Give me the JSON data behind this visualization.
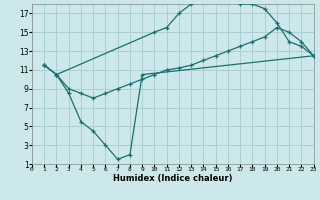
{
  "xlabel": "Humidex (Indice chaleur)",
  "bg_color": "#cce8ea",
  "grid_color": "#aacfd2",
  "line_color": "#1a7070",
  "xlim": [
    0,
    23
  ],
  "ylim": [
    1,
    18
  ],
  "xticks": [
    0,
    1,
    2,
    3,
    4,
    5,
    6,
    7,
    8,
    9,
    10,
    11,
    12,
    13,
    14,
    15,
    16,
    17,
    18,
    19,
    20,
    21,
    22,
    23
  ],
  "yticks": [
    1,
    3,
    5,
    7,
    9,
    11,
    13,
    15,
    17
  ],
  "curve_lower_x": [
    1,
    2,
    3,
    4,
    5,
    6,
    7,
    8,
    9,
    23
  ],
  "curve_lower_y": [
    11.5,
    10.5,
    8.5,
    5.5,
    4.5,
    3.0,
    1.5,
    2.0,
    10.5,
    12.5
  ],
  "curve_upper_x": [
    1,
    2,
    10,
    11,
    12,
    13,
    14,
    15,
    16,
    17,
    18,
    19,
    20,
    21,
    22,
    23
  ],
  "curve_upper_y": [
    11.5,
    10.5,
    15.0,
    15.5,
    17.0,
    18.0,
    18.5,
    18.5,
    18.5,
    18.0,
    18.0,
    17.5,
    16.0,
    14.0,
    13.5,
    12.5
  ],
  "curve_diag_x": [
    1,
    2,
    3,
    4,
    5,
    6,
    7,
    8,
    9,
    10,
    11,
    12,
    13,
    14,
    15,
    16,
    17,
    18,
    19,
    20,
    21,
    22,
    23
  ],
  "curve_diag_y": [
    11.5,
    10.5,
    9.0,
    8.5,
    8.0,
    8.5,
    9.0,
    9.5,
    10.0,
    10.5,
    11.0,
    11.2,
    11.5,
    12.0,
    12.5,
    13.0,
    13.5,
    14.0,
    14.5,
    15.5,
    15.0,
    14.0,
    12.5
  ]
}
